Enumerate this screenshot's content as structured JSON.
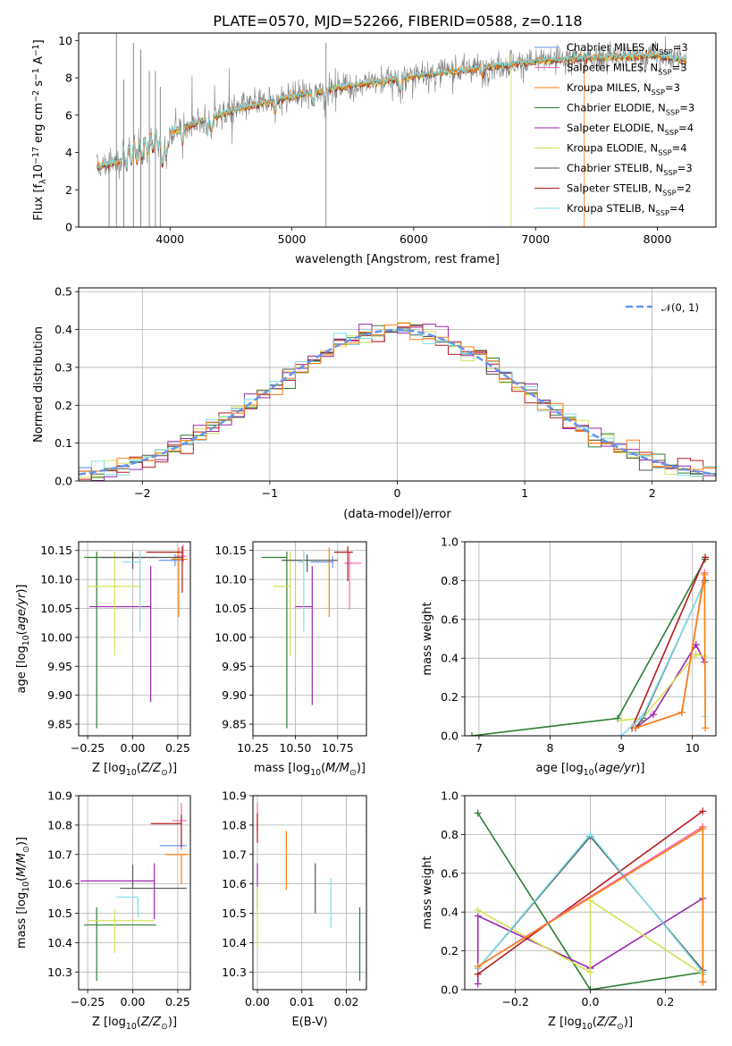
{
  "figure": {
    "title": "PLATE=0570, MJD=52266, FIBERID=0588, z=0.118"
  },
  "colors": {
    "grid": "#b0b0b0",
    "spectrum": "#808080",
    "normal_curve": "#6495ed",
    "series": {
      "chabrier_miles": "#6495ed",
      "salpeter_miles": "#ff69b4",
      "kroupa_miles": "#ff7f0e",
      "chabrier_elodie": "#2e7d32",
      "salpeter_elodie": "#9c27b0",
      "kroupa_elodie": "#d4e157",
      "chabrier_stelib": "#555555",
      "salpeter_stelib": "#b71c1c",
      "kroupa_stelib": "#80deea"
    }
  },
  "chart_data": [
    {
      "id": "spectrum",
      "type": "line",
      "xlabel": "wavelength [Angstrom, rest frame]",
      "ylabel": "Flux [f_λ 10^-17 erg cm^-2 s^-1 A^-1]",
      "xlim": [
        3250,
        8480
      ],
      "ylim": [
        0,
        10.4
      ],
      "xticks": [
        4000,
        5000,
        6000,
        7000,
        8000
      ],
      "yticks": [
        0,
        2,
        4,
        6,
        8,
        10
      ],
      "grid": false,
      "legend_position": "right",
      "legend": [
        {
          "label": "Chabrier MILES, N_SSP=3",
          "key": "chabrier_miles"
        },
        {
          "label": "Salpeter MILES, N_SSP=3",
          "key": "salpeter_miles"
        },
        {
          "label": "Kroupa MILES, N_SSP=3",
          "key": "kroupa_miles"
        },
        {
          "label": "Chabrier ELODIE, N_SSP=3",
          "key": "chabrier_elodie"
        },
        {
          "label": "Salpeter ELODIE, N_SSP=4",
          "key": "salpeter_elodie"
        },
        {
          "label": "Kroupa ELODIE, N_SSP=4",
          "key": "kroupa_elodie"
        },
        {
          "label": "Chabrier STELIB, N_SSP=3",
          "key": "chabrier_stelib"
        },
        {
          "label": "Salpeter STELIB, N_SSP=2",
          "key": "salpeter_stelib"
        },
        {
          "label": "Kroupa STELIB, N_SSP=4",
          "key": "kroupa_stelib"
        }
      ],
      "continuum_anchors": {
        "x": [
          3400,
          3600,
          3800,
          4000,
          4300,
          4600,
          5000,
          5300,
          5600,
          6000,
          6500,
          7000,
          7500,
          8000,
          8250
        ],
        "y": [
          3.2,
          3.6,
          4.3,
          5.1,
          5.8,
          6.4,
          7.0,
          7.4,
          7.7,
          8.1,
          8.5,
          8.9,
          9.1,
          9.2,
          8.9
        ]
      }
    },
    {
      "id": "residuals",
      "type": "step",
      "xlabel": "(data-model)/error",
      "ylabel": "Normed distribution",
      "xlim": [
        -2.5,
        2.5
      ],
      "ylim": [
        0,
        0.51
      ],
      "xticks": [
        -2,
        -1,
        0,
        1,
        2
      ],
      "yticks": [
        0.0,
        0.1,
        0.2,
        0.3,
        0.4,
        0.5
      ],
      "grid": true,
      "legend": [
        {
          "label": "𝒩(0, 1)",
          "style": "dashed"
        }
      ],
      "legend_position": "top-right",
      "bin_width": 0.1
    },
    {
      "id": "age_vs_Z",
      "type": "errorbar",
      "xlabel": "Z [log10(Z/Z☉)]",
      "ylabel": "age  [log10(age/yr)]",
      "xlim": [
        -0.3,
        0.32
      ],
      "ylim": [
        9.83,
        10.165
      ],
      "xticks": [
        -0.25,
        0.0,
        0.25
      ],
      "xtick_labels": [
        "−0.25",
        "0.00",
        "0.25"
      ],
      "yticks": [
        9.85,
        9.9,
        9.95,
        10.0,
        10.05,
        10.1,
        10.15
      ],
      "ytick_labels": [
        "9.85",
        "9.90",
        "9.95",
        "10.00",
        "10.05",
        "10.10",
        "10.15"
      ],
      "grid": true,
      "points": [
        {
          "key": "chabrier_miles",
          "x": 0.235,
          "xerr": [
            0.09,
            0.05
          ],
          "y": 10.133,
          "yerr": [
            0.01,
            0.01
          ]
        },
        {
          "key": "salpeter_miles",
          "x": 0.28,
          "xerr": [
            0.04,
            0.02
          ],
          "y": 10.14,
          "yerr": [
            0.01,
            0.02
          ]
        },
        {
          "key": "kroupa_miles",
          "x": 0.255,
          "xerr": [
            0.04,
            0.05
          ],
          "y": 10.135,
          "yerr": [
            0.1,
            0.02
          ]
        },
        {
          "key": "chabrier_elodie",
          "x": -0.2,
          "xerr": [
            0.07,
            0.33
          ],
          "y": 10.138,
          "yerr": [
            0.295,
            0.01
          ]
        },
        {
          "key": "salpeter_elodie",
          "x": 0.1,
          "xerr": [
            0.34,
            0.0
          ],
          "y": 10.053,
          "yerr": [
            0.165,
            0.07
          ]
        },
        {
          "key": "kroupa_elodie",
          "x": -0.1,
          "xerr": [
            0.15,
            0.15
          ],
          "y": 10.088,
          "yerr": [
            0.12,
            0.06
          ]
        },
        {
          "key": "chabrier_stelib",
          "x": 0.0,
          "xerr": [
            0.17,
            0.28
          ],
          "y": 10.138,
          "yerr": [
            0.02,
            0.01
          ]
        },
        {
          "key": "salpeter_stelib",
          "x": 0.275,
          "xerr": [
            0.2,
            0.0
          ],
          "y": 10.147,
          "yerr": [
            0.07,
            0.01
          ]
        },
        {
          "key": "kroupa_stelib",
          "x": 0.04,
          "xerr": [
            0.1,
            0.0
          ],
          "y": 10.13,
          "yerr": [
            0.12,
            0.02
          ]
        }
      ]
    },
    {
      "id": "age_vs_mass",
      "type": "errorbar",
      "xlabel": "mass [log10(M/M☉)]",
      "ylabel": "",
      "xlim": [
        10.25,
        10.92
      ],
      "ylim": [
        9.83,
        10.165
      ],
      "xticks": [
        10.25,
        10.5,
        10.75
      ],
      "xtick_labels": [
        "10.25",
        "10.50",
        "10.75"
      ],
      "yticks": [
        9.85,
        9.9,
        9.95,
        10.0,
        10.05,
        10.1,
        10.15
      ],
      "ytick_labels": [
        "9.85",
        "9.90",
        "9.95",
        "10.00",
        "10.05",
        "10.10",
        "10.15"
      ],
      "grid": true,
      "points": [
        {
          "key": "chabrier_miles",
          "x": 10.72,
          "xerr": [
            0.13,
            0.0
          ],
          "y": 10.13,
          "yerr": [
            0.01,
            0.01
          ]
        },
        {
          "key": "salpeter_miles",
          "x": 10.82,
          "xerr": [
            0.03,
            0.07
          ],
          "y": 10.128,
          "yerr": [
            0.08,
            0.02
          ]
        },
        {
          "key": "kroupa_miles",
          "x": 10.7,
          "xerr": [
            0.0,
            0.0
          ],
          "y": 10.135,
          "yerr": [
            0.1,
            0.02
          ]
        },
        {
          "key": "chabrier_elodie",
          "x": 10.45,
          "xerr": [
            0.15,
            0.0
          ],
          "y": 10.138,
          "yerr": [
            0.295,
            0.01
          ]
        },
        {
          "key": "salpeter_elodie",
          "x": 10.6,
          "xerr": [
            0.1,
            0.0
          ],
          "y": 10.053,
          "yerr": [
            0.17,
            0.07
          ]
        },
        {
          "key": "kroupa_elodie",
          "x": 10.47,
          "xerr": [
            0.1,
            0.0
          ],
          "y": 10.088,
          "yerr": [
            0.12,
            0.06
          ]
        },
        {
          "key": "chabrier_stelib",
          "x": 10.57,
          "xerr": [
            0.15,
            0.18
          ],
          "y": 10.133,
          "yerr": [
            0.02,
            0.01
          ]
        },
        {
          "key": "salpeter_stelib",
          "x": 10.81,
          "xerr": [
            0.08,
            0.03
          ],
          "y": 10.147,
          "yerr": [
            0.05,
            0.01
          ]
        },
        {
          "key": "kroupa_stelib",
          "x": 10.55,
          "xerr": [
            0.03,
            0.0
          ],
          "y": 10.13,
          "yerr": [
            0.12,
            0.02
          ]
        }
      ]
    },
    {
      "id": "weight_vs_age",
      "type": "line",
      "xlabel": "age  [log10(age/yr)]",
      "ylabel": "mass weight",
      "xlim": [
        6.8,
        10.33
      ],
      "ylim": [
        0,
        1
      ],
      "xticks": [
        7,
        8,
        9,
        10
      ],
      "yticks": [
        0.0,
        0.2,
        0.4,
        0.6,
        0.8,
        1.0
      ],
      "grid": true,
      "series": [
        {
          "key": "chabrier_elodie",
          "x": [
            6.9,
            8.95,
            10.18
          ],
          "y": [
            0.0,
            0.09,
            0.91
          ]
        },
        {
          "key": "salpeter_elodie",
          "x": [
            9.2,
            9.45,
            10.05,
            10.17
          ],
          "y": [
            0.04,
            0.11,
            0.47,
            0.38
          ]
        },
        {
          "key": "kroupa_elodie",
          "x": [
            9.0,
            9.3,
            10.05,
            10.17
          ],
          "y": [
            0.08,
            0.09,
            0.42,
            0.41
          ]
        },
        {
          "key": "chabrier_stelib",
          "x": [
            9.2,
            9.3,
            10.18
          ],
          "y": [
            0.04,
            0.09,
            0.8
          ]
        },
        {
          "key": "salpeter_stelib",
          "x": [
            9.15,
            10.18
          ],
          "y": [
            0.04,
            0.92
          ]
        },
        {
          "key": "kroupa_stelib",
          "x": [
            9.0,
            9.3,
            10.17,
            10.18
          ],
          "y": [
            0.0,
            0.1,
            0.79,
            0.1
          ]
        },
        {
          "key": "chabrier_miles",
          "x": [
            9.2,
            9.85,
            10.17
          ],
          "y": [
            0.04,
            0.12,
            0.84
          ]
        },
        {
          "key": "salpeter_miles",
          "x": [
            9.2,
            9.85,
            10.17
          ],
          "y": [
            0.04,
            0.12,
            0.84
          ]
        },
        {
          "key": "kroupa_miles",
          "x": [
            9.2,
            9.85,
            10.17,
            10.18
          ],
          "y": [
            0.04,
            0.12,
            0.83,
            0.04
          ]
        }
      ]
    },
    {
      "id": "mass_vs_Z",
      "type": "errorbar",
      "xlabel": "Z [log10(Z/Z☉)]",
      "ylabel": "mass [log10(M/M☉)]",
      "xlim": [
        -0.3,
        0.32
      ],
      "ylim": [
        10.24,
        10.9
      ],
      "xticks": [
        -0.25,
        0.0,
        0.25
      ],
      "xtick_labels": [
        "−0.25",
        "0.00",
        "0.25"
      ],
      "yticks": [
        10.3,
        10.4,
        10.5,
        10.6,
        10.7,
        10.8,
        10.9
      ],
      "ytick_labels": [
        "10.3",
        "10.4",
        "10.5",
        "10.6",
        "10.7",
        "10.8",
        "10.9"
      ],
      "grid": true,
      "points": [
        {
          "key": "chabrier_miles",
          "x": 0.25,
          "xerr": [
            0.1,
            0.05
          ],
          "y": 10.73,
          "yerr": [
            0.0,
            0.0
          ]
        },
        {
          "key": "salpeter_miles",
          "x": 0.27,
          "xerr": [
            0.05,
            0.03
          ],
          "y": 10.815,
          "yerr": [
            0.1,
            0.06
          ]
        },
        {
          "key": "kroupa_miles",
          "x": 0.27,
          "xerr": [
            0.09,
            0.04
          ],
          "y": 10.7,
          "yerr": [
            0.1,
            0.0
          ]
        },
        {
          "key": "chabrier_elodie",
          "x": -0.2,
          "xerr": [
            0.07,
            0.33
          ],
          "y": 10.46,
          "yerr": [
            0.19,
            0.06
          ]
        },
        {
          "key": "salpeter_elodie",
          "x": 0.12,
          "xerr": [
            0.41,
            0.0
          ],
          "y": 10.61,
          "yerr": [
            0.13,
            0.06
          ]
        },
        {
          "key": "kroupa_elodie",
          "x": -0.1,
          "xerr": [
            0.15,
            0.22
          ],
          "y": 10.475,
          "yerr": [
            0.11,
            0.04
          ]
        },
        {
          "key": "chabrier_stelib",
          "x": 0.0,
          "xerr": [
            0.07,
            0.3
          ],
          "y": 10.585,
          "yerr": [
            0.0,
            0.08
          ]
        },
        {
          "key": "salpeter_stelib",
          "x": 0.27,
          "xerr": [
            0.17,
            0.0
          ],
          "y": 10.805,
          "yerr": [
            0.08,
            0.03
          ]
        },
        {
          "key": "kroupa_stelib",
          "x": 0.03,
          "xerr": [
            0.12,
            0.0
          ],
          "y": 10.555,
          "yerr": [
            0.07,
            0.0
          ]
        }
      ]
    },
    {
      "id": "mass_vs_ebv",
      "type": "errorbar",
      "xlabel": "E(B-V)",
      "ylabel": "",
      "xlim": [
        -0.001,
        0.0245
      ],
      "ylim": [
        10.24,
        10.9
      ],
      "xticks": [
        0.0,
        0.01,
        0.02
      ],
      "xtick_labels": [
        "0.00",
        "0.01",
        "0.02"
      ],
      "yticks": [
        10.3,
        10.4,
        10.5,
        10.6,
        10.7,
        10.8,
        10.9
      ],
      "ytick_labels": [
        "10.3",
        "10.4",
        "10.5",
        "10.6",
        "10.7",
        "10.8",
        "10.9"
      ],
      "grid": true,
      "points": [
        {
          "key": "chabrier_miles",
          "x": 0.0,
          "y": 10.73,
          "yerr": [
            0.0,
            0.0
          ]
        },
        {
          "key": "salpeter_miles",
          "x": 0.0,
          "y": 10.815,
          "yerr": [
            0.04,
            0.06
          ]
        },
        {
          "key": "kroupa_miles",
          "x": 0.0065,
          "y": 10.68,
          "yerr": [
            0.1,
            0.1
          ]
        },
        {
          "key": "chabrier_elodie",
          "x": 0.023,
          "y": 10.39,
          "yerr": [
            0.12,
            0.13
          ]
        },
        {
          "key": "salpeter_elodie",
          "x": 0.0,
          "y": 10.61,
          "yerr": [
            0.1,
            0.06
          ]
        },
        {
          "key": "kroupa_elodie",
          "x": 0.0,
          "y": 10.49,
          "yerr": [
            0.11,
            0.1
          ]
        },
        {
          "key": "chabrier_stelib",
          "x": 0.013,
          "y": 10.58,
          "yerr": [
            0.08,
            0.09
          ]
        },
        {
          "key": "salpeter_stelib",
          "x": 0.0,
          "y": 10.79,
          "yerr": [
            0.05,
            0.05
          ]
        },
        {
          "key": "kroupa_stelib",
          "x": 0.0165,
          "y": 10.54,
          "yerr": [
            0.09,
            0.08
          ]
        }
      ]
    },
    {
      "id": "weight_vs_Z",
      "type": "line",
      "xlabel": "Z [log10(Z/Z☉)]",
      "ylabel": "mass weight",
      "xlim": [
        -0.335,
        0.335
      ],
      "ylim": [
        0,
        1
      ],
      "xticks": [
        -0.2,
        0.0,
        0.2
      ],
      "xtick_labels": [
        "−0.2",
        "0.0",
        "0.2"
      ],
      "yticks": [
        0.0,
        0.2,
        0.4,
        0.6,
        0.8,
        1.0
      ],
      "grid": true,
      "series": [
        {
          "key": "chabrier_elodie",
          "x": [
            -0.3,
            0.0,
            0.3
          ],
          "y": [
            0.91,
            0.0,
            0.09
          ]
        },
        {
          "key": "salpeter_elodie",
          "x": [
            -0.3,
            -0.3,
            0.0,
            0.3,
            0.3
          ],
          "y": [
            0.03,
            0.38,
            0.11,
            0.47,
            0.04
          ]
        },
        {
          "key": "kroupa_elodie",
          "x": [
            -0.3,
            0.0,
            0.0,
            0.3
          ],
          "y": [
            0.41,
            0.09,
            0.46,
            0.08
          ]
        },
        {
          "key": "chabrier_stelib",
          "x": [
            -0.3,
            0.0,
            0.3
          ],
          "y": [
            0.11,
            0.79,
            0.1
          ]
        },
        {
          "key": "salpeter_stelib",
          "x": [
            -0.3,
            0.3
          ],
          "y": [
            0.08,
            0.92
          ]
        },
        {
          "key": "kroupa_stelib",
          "x": [
            -0.3,
            0.0,
            0.3
          ],
          "y": [
            0.11,
            0.8,
            0.09
          ]
        },
        {
          "key": "chabrier_miles",
          "x": [
            -0.3,
            0.3,
            0.3
          ],
          "y": [
            0.12,
            0.84,
            0.04
          ]
        },
        {
          "key": "salpeter_miles",
          "x": [
            -0.3,
            0.3,
            0.3
          ],
          "y": [
            0.12,
            0.84,
            0.04
          ]
        },
        {
          "key": "kroupa_miles",
          "x": [
            -0.3,
            0.3,
            0.3
          ],
          "y": [
            0.12,
            0.83,
            0.04
          ]
        }
      ]
    }
  ]
}
